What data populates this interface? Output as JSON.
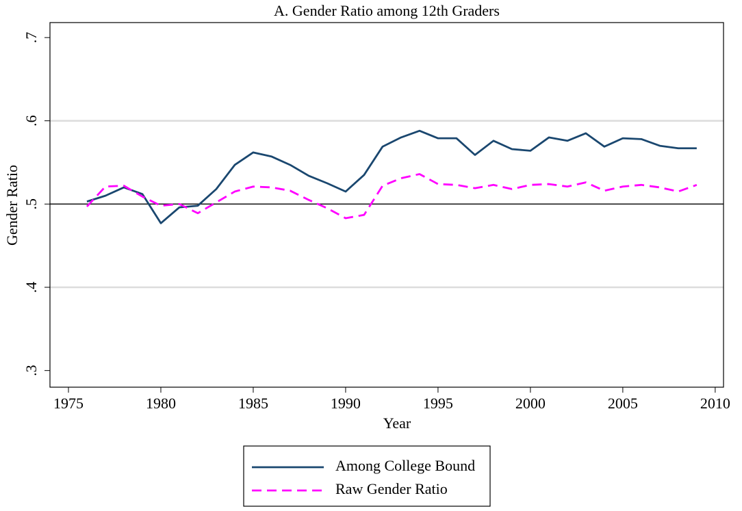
{
  "chart_data": {
    "type": "line",
    "title": "A. Gender Ratio among 12th Graders",
    "x_label": "Year",
    "y_label": "Gender Ratio",
    "x": [
      1976,
      1977,
      1978,
      1979,
      1980,
      1981,
      1982,
      1983,
      1984,
      1985,
      1986,
      1987,
      1988,
      1989,
      1990,
      1991,
      1992,
      1993,
      1994,
      1995,
      1996,
      1997,
      1998,
      1999,
      2000,
      2001,
      2002,
      2003,
      2004,
      2005,
      2006,
      2007,
      2008,
      2009
    ],
    "series": [
      {
        "name": "Among College Bound",
        "color": "#1a476f",
        "style": "solid",
        "values": [
          0.503,
          0.51,
          0.52,
          0.512,
          0.477,
          0.496,
          0.498,
          0.518,
          0.547,
          0.562,
          0.557,
          0.547,
          0.534,
          0.525,
          0.515,
          0.535,
          0.569,
          0.58,
          0.588,
          0.579,
          0.579,
          0.559,
          0.576,
          0.566,
          0.564,
          0.58,
          0.576,
          0.585,
          0.569,
          0.579,
          0.578,
          0.57,
          0.567,
          0.567
        ]
      },
      {
        "name": "Raw Gender Ratio",
        "color": "#ff00ff",
        "style": "dashed",
        "values": [
          0.497,
          0.521,
          0.522,
          0.509,
          0.498,
          0.5,
          0.489,
          0.502,
          0.515,
          0.521,
          0.52,
          0.516,
          0.505,
          0.495,
          0.483,
          0.487,
          0.522,
          0.531,
          0.536,
          0.524,
          0.523,
          0.519,
          0.523,
          0.518,
          0.523,
          0.524,
          0.521,
          0.526,
          0.516,
          0.521,
          0.523,
          0.52,
          0.515,
          0.523
        ]
      }
    ],
    "xlim": [
      1974,
      2010.45
    ],
    "xticks": [
      1975,
      1980,
      1985,
      1990,
      1995,
      2000,
      2005,
      2010
    ],
    "ylim": [
      0.28,
      0.718
    ],
    "yticks": [
      {
        "value": 0.3,
        "label": ".3"
      },
      {
        "value": 0.4,
        "label": ".4"
      },
      {
        "value": 0.5,
        "label": ".5"
      },
      {
        "value": 0.6,
        "label": ".6"
      },
      {
        "value": 0.7,
        "label": ".7"
      }
    ],
    "grid": true,
    "reference_line": 0.5,
    "legend_position": "bottom"
  }
}
